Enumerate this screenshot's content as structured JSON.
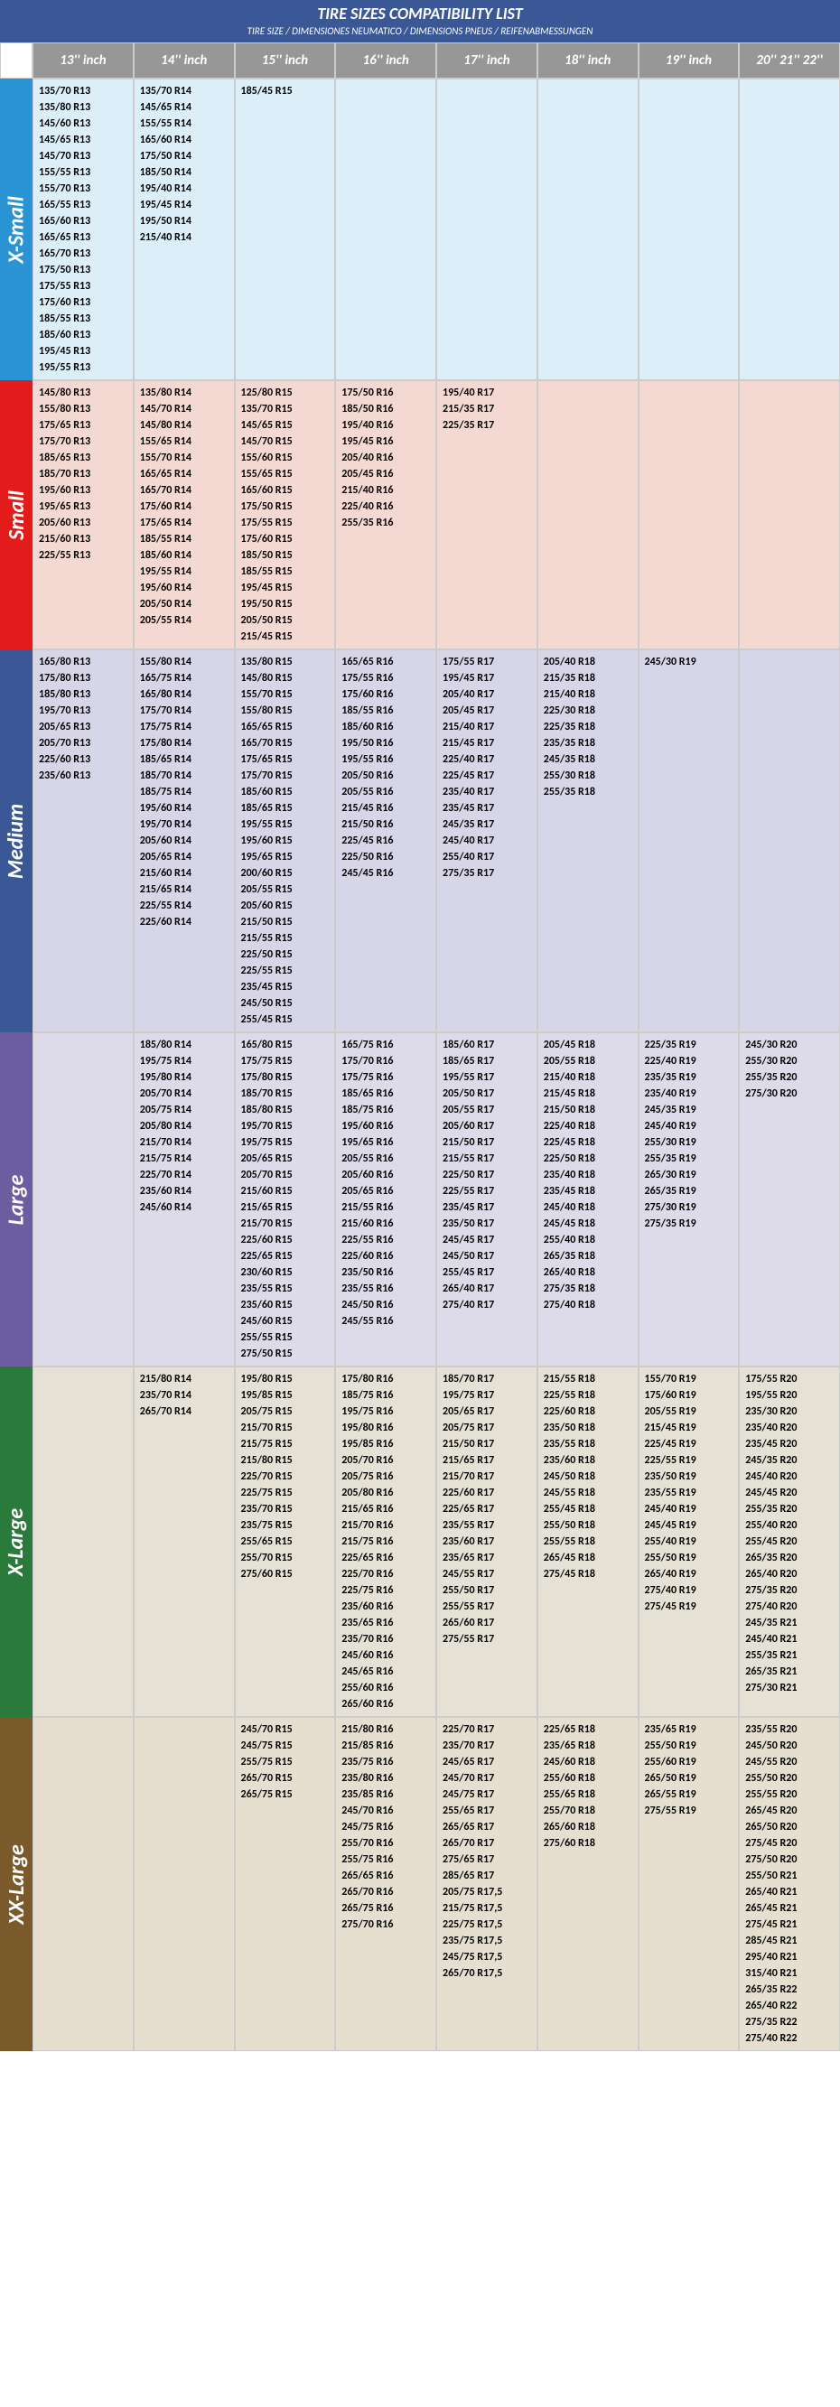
{
  "title": "TIRE SIZES COMPATIBILITY LIST",
  "subtitle": "TIRE SIZE  /  DIMENSIONES NEUMATICO  /  DIMENSIONS PNEUS  /  REIFENABMESSUNGEN",
  "columns": [
    "13'' inch",
    "14'' inch",
    "15'' inch",
    "16'' inch",
    "17'' inch",
    "18'' inch",
    "19'' inch",
    "20'' 21'' 22''"
  ],
  "sections": [
    {
      "key": "xs",
      "label": "X-Small",
      "cols": [
        [
          "135/70 R13",
          "135/80 R13",
          "145/60 R13",
          "145/65 R13",
          "145/70 R13",
          "155/55 R13",
          "155/70 R13",
          "165/55 R13",
          "165/60 R13",
          "165/65 R13",
          "165/70 R13",
          "175/50 R13",
          "175/55 R13",
          "175/60 R13",
          "185/55 R13",
          "185/60 R13",
          "195/45 R13",
          "195/55 R13"
        ],
        [
          "135/70 R14",
          "145/65 R14",
          "155/55 R14",
          "165/60 R14",
          "175/50 R14",
          "185/50 R14",
          "195/40 R14",
          "195/45 R14",
          "195/50 R14",
          "215/40 R14"
        ],
        [
          "185/45 R15"
        ],
        [],
        [],
        [],
        [],
        []
      ]
    },
    {
      "key": "sm",
      "label": "Small",
      "cols": [
        [
          "145/80 R13",
          "155/80 R13",
          "175/65 R13",
          "175/70 R13",
          "185/65 R13",
          "185/70 R13",
          "195/60 R13",
          "195/65 R13",
          "205/60 R13",
          "215/60 R13",
          "225/55 R13"
        ],
        [
          "135/80 R14",
          "145/70 R14",
          "145/80 R14",
          "155/65 R14",
          "155/70 R14",
          "165/65 R14",
          "165/70 R14",
          "175/60 R14",
          "175/65 R14",
          "185/55 R14",
          "185/60 R14",
          "195/55 R14",
          "195/60 R14",
          "205/50 R14",
          "205/55 R14"
        ],
        [
          "125/80 R15",
          "135/70 R15",
          "145/65 R15",
          "145/70 R15",
          "155/60 R15",
          "155/65 R15",
          "165/60 R15",
          "175/50 R15",
          "175/55 R15",
          "175/60 R15",
          "185/50 R15",
          "185/55 R15",
          "195/45 R15",
          "195/50 R15",
          "205/50 R15",
          "215/45 R15"
        ],
        [
          "175/50 R16",
          "185/50 R16",
          "195/40 R16",
          "195/45 R16",
          "205/40 R16",
          "205/45 R16",
          "215/40 R16",
          "225/40 R16",
          "255/35 R16"
        ],
        [
          "195/40 R17",
          "215/35 R17",
          "225/35 R17"
        ],
        [],
        [],
        []
      ]
    },
    {
      "key": "md",
      "label": "Medium",
      "cols": [
        [
          "165/80 R13",
          "175/80 R13",
          "185/80 R13",
          "195/70 R13",
          "205/65 R13",
          "205/70 R13",
          "225/60 R13",
          "235/60 R13"
        ],
        [
          "155/80 R14",
          "165/75 R14",
          "165/80 R14",
          "175/70 R14",
          "175/75 R14",
          "175/80 R14",
          "185/65 R14",
          "185/70 R14",
          "185/75 R14",
          "195/60 R14",
          "195/70 R14",
          "205/60 R14",
          "205/65 R14",
          "215/60 R14",
          "215/65 R14",
          "225/55 R14",
          "225/60 R14"
        ],
        [
          "135/80 R15",
          "145/80 R15",
          "155/70 R15",
          "155/80 R15",
          "165/65 R15",
          "165/70 R15",
          "175/65 R15",
          "175/70 R15",
          "185/60 R15",
          "185/65 R15",
          "195/55 R15",
          "195/60 R15",
          "195/65 R15",
          "200/60 R15",
          "205/55 R15",
          "205/60 R15",
          "215/50 R15",
          "215/55 R15",
          "225/50 R15",
          "225/55 R15",
          "235/45 R15",
          "245/50 R15",
          "255/45 R15"
        ],
        [
          "165/65 R16",
          "175/55 R16",
          "175/60 R16",
          "185/55 R16",
          "185/60 R16",
          "195/50 R16",
          "195/55 R16",
          "205/50 R16",
          "205/55 R16",
          "215/45 R16",
          "215/50 R16",
          "225/45 R16",
          "225/50 R16",
          "245/45 R16"
        ],
        [
          "175/55 R17",
          "195/45 R17",
          "205/40 R17",
          "205/45 R17",
          "215/40 R17",
          "215/45 R17",
          "225/40 R17",
          "225/45 R17",
          "235/40 R17",
          "235/45 R17",
          "245/35 R17",
          "245/40 R17",
          "255/40 R17",
          "275/35 R17"
        ],
        [
          "205/40 R18",
          "215/35 R18",
          "215/40 R18",
          "225/30 R18",
          "225/35 R18",
          "235/35 R18",
          "245/35 R18",
          "255/30 R18",
          "255/35 R18"
        ],
        [
          "245/30 R19"
        ],
        []
      ]
    },
    {
      "key": "lg",
      "label": "Large",
      "cols": [
        [],
        [
          "185/80 R14",
          "195/75 R14",
          "195/80 R14",
          "205/70 R14",
          "205/75 R14",
          "205/80 R14",
          "215/70 R14",
          "215/75 R14",
          "225/70 R14",
          "235/60 R14",
          "245/60 R14"
        ],
        [
          "165/80 R15",
          "175/75 R15",
          "175/80 R15",
          "185/70 R15",
          "185/80 R15",
          "195/70 R15",
          "195/75 R15",
          "205/65 R15",
          "205/70 R15",
          "215/60 R15",
          "215/65 R15",
          "215/70 R15",
          "225/60 R15",
          "225/65 R15",
          "230/60 R15",
          "235/55 R15",
          "235/60 R15",
          "245/60 R15",
          "255/55 R15",
          "275/50 R15"
        ],
        [
          "165/75 R16",
          "175/70 R16",
          "175/75 R16",
          "185/65 R16",
          "185/75 R16",
          "195/60 R16",
          "195/65 R16",
          "205/55 R16",
          "205/60 R16",
          "205/65 R16",
          "215/55 R16",
          "215/60 R16",
          "225/55 R16",
          "225/60 R16",
          "235/50 R16",
          "235/55 R16",
          "245/50 R16",
          "245/55 R16"
        ],
        [
          "185/60 R17",
          "185/65 R17",
          "195/55 R17",
          "205/50 R17",
          "205/55 R17",
          "205/60 R17",
          "215/50 R17",
          "215/55 R17",
          "225/50 R17",
          "225/55 R17",
          "235/45 R17",
          "235/50 R17",
          "245/45 R17",
          "245/50 R17",
          "255/45 R17",
          "265/40 R17",
          "275/40 R17"
        ],
        [
          "205/45 R18",
          "205/55 R18",
          "215/40 R18",
          "215/45 R18",
          "215/50 R18",
          "225/40 R18",
          "225/45 R18",
          "225/50 R18",
          "235/40 R18",
          "235/45 R18",
          "245/40 R18",
          "245/45 R18",
          "255/40 R18",
          "265/35 R18",
          "265/40 R18",
          "275/35 R18",
          "275/40 R18"
        ],
        [
          "225/35 R19",
          "225/40 R19",
          "235/35 R19",
          "235/40 R19",
          "245/35 R19",
          "245/40 R19",
          "255/30 R19",
          "255/35 R19",
          "265/30 R19",
          "265/35 R19",
          "275/30 R19",
          "275/35 R19"
        ],
        [
          "245/30 R20",
          "255/30 R20",
          "255/35 R20",
          "275/30 R20"
        ]
      ]
    },
    {
      "key": "xl",
      "label": "X-Large",
      "cols": [
        [],
        [
          "215/80 R14",
          "235/70 R14",
          "265/70 R14"
        ],
        [
          "195/80 R15",
          "195/85 R15",
          "205/75 R15",
          "215/70 R15",
          "215/75 R15",
          "215/80 R15",
          "225/70 R15",
          "225/75 R15",
          "235/70 R15",
          "235/75 R15",
          "255/65 R15",
          "255/70 R15",
          "275/60 R15"
        ],
        [
          "175/80 R16",
          "185/75 R16",
          "195/75 R16",
          "195/80 R16",
          "195/85 R16",
          "205/70 R16",
          "205/75 R16",
          "205/80 R16",
          "215/65 R16",
          "215/70 R16",
          "215/75 R16",
          "225/65 R16",
          "225/70 R16",
          "225/75 R16",
          "235/60 R16",
          "235/65 R16",
          "235/70 R16",
          "245/60 R16",
          "245/65 R16",
          "255/60 R16",
          "265/60 R16"
        ],
        [
          "185/70 R17",
          "195/75 R17",
          "205/65 R17",
          "205/75 R17",
          "215/50 R17",
          "215/65 R17",
          "215/70 R17",
          "225/60 R17",
          "225/65 R17",
          "235/55 R17",
          "235/60 R17",
          "235/65 R17",
          "245/55 R17",
          "255/50 R17",
          "255/55 R17",
          "265/60 R17",
          "275/55 R17"
        ],
        [
          "215/55 R18",
          "225/55 R18",
          "225/60 R18",
          "235/50 R18",
          "235/55 R18",
          "235/60 R18",
          "245/50 R18",
          "245/55 R18",
          "255/45 R18",
          "255/50 R18",
          "255/55 R18",
          "265/45 R18",
          "275/45 R18"
        ],
        [
          "155/70 R19",
          "175/60 R19",
          "205/55 R19",
          "215/45 R19",
          "225/45 R19",
          "225/55 R19",
          "235/50 R19",
          "235/55 R19",
          "245/40 R19",
          "245/45 R19",
          "255/40 R19",
          "255/50 R19",
          "265/40 R19",
          "275/40 R19",
          "275/45 R19"
        ],
        [
          "175/55 R20",
          "195/55 R20",
          "235/30 R20",
          "235/40 R20",
          "235/45 R20",
          "245/35 R20",
          "245/40 R20",
          "245/45 R20",
          "255/35 R20",
          "255/40 R20",
          "255/45 R20",
          "265/35 R20",
          "265/40 R20",
          "275/35 R20",
          "275/40 R20",
          "245/35 R21",
          "245/40 R21",
          "255/35 R21",
          "265/35 R21",
          "275/30 R21"
        ]
      ]
    },
    {
      "key": "xxl",
      "label": "XX-Large",
      "cols": [
        [],
        [],
        [
          "245/70 R15",
          "245/75 R15",
          "255/75 R15",
          "265/70 R15",
          "265/75 R15"
        ],
        [
          "215/80 R16",
          "215/85 R16",
          "235/75 R16",
          "235/80 R16",
          "235/85 R16",
          "245/70 R16",
          "245/75 R16",
          "255/70 R16",
          "255/75 R16",
          "265/65 R16",
          "265/70 R16",
          "265/75 R16",
          "275/70 R16"
        ],
        [
          "225/70 R17",
          "235/70 R17",
          "245/65 R17",
          "245/70 R17",
          "245/75 R17",
          "255/65 R17",
          "265/65 R17",
          "265/70 R17",
          "275/65 R17",
          "285/65 R17",
          "205/75 R17,5",
          "215/75 R17,5",
          "225/75 R17,5",
          "235/75 R17,5",
          "245/75 R17,5",
          "265/70 R17,5"
        ],
        [
          "225/65 R18",
          "235/65 R18",
          "245/60 R18",
          "255/60 R18",
          "255/65 R18",
          "255/70 R18",
          "265/60 R18",
          "275/60 R18"
        ],
        [
          "235/65 R19",
          "255/50 R19",
          "255/60 R19",
          "265/50 R19",
          "265/55 R19",
          "275/55 R19"
        ],
        [
          "235/55 R20",
          "245/50 R20",
          "245/55 R20",
          "255/50 R20",
          "255/55 R20",
          "265/45 R20",
          "265/50 R20",
          "275/45 R20",
          "275/50 R20",
          "255/50 R21",
          "265/40 R21",
          "265/45 R21",
          "275/45 R21",
          "285/45 R21",
          "295/40 R21",
          "315/40 R21",
          "265/35 R22",
          "265/40 R22",
          "275/35 R22",
          "275/40 R22"
        ]
      ]
    }
  ]
}
